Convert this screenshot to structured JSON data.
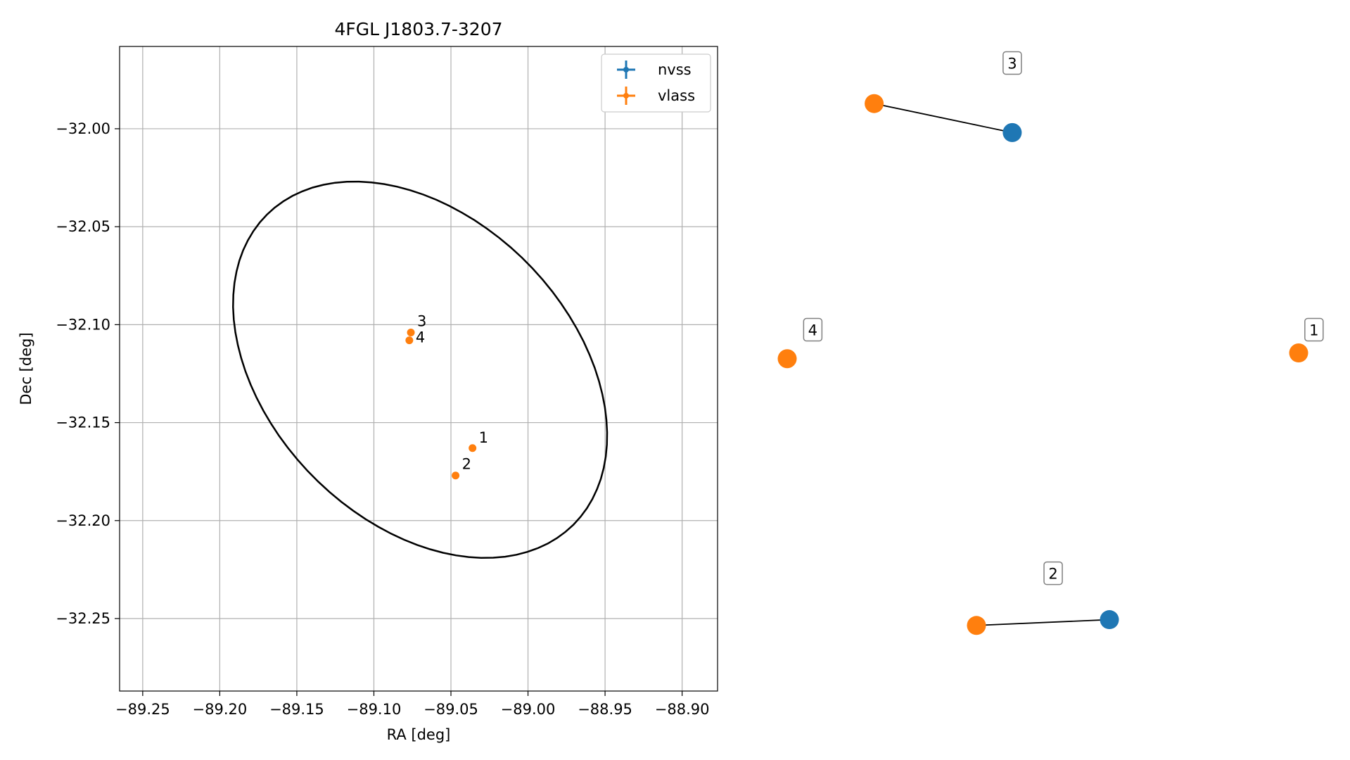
{
  "colors": {
    "nvss": "#1f77b4",
    "vlass": "#ff7f0e",
    "grid": "#b0b0b0",
    "ellipse": "#000000"
  },
  "chart_data": [
    {
      "type": "scatter",
      "title": "4FGL J1803.7-3207",
      "xlabel": "RA [deg]",
      "ylabel": "Dec [deg]",
      "xlim": [
        -89.265,
        -88.877
      ],
      "ylim": [
        -32.287,
        -31.958
      ],
      "xticks": [
        -89.25,
        -89.2,
        -89.15,
        -89.1,
        -89.05,
        -89.0,
        -88.95,
        -88.9
      ],
      "xtick_labels": [
        "−89.25",
        "−89.20",
        "−89.15",
        "−89.10",
        "−89.05",
        "−89.00",
        "−88.95",
        "−88.90"
      ],
      "yticks": [
        -32.0,
        -32.05,
        -32.1,
        -32.15,
        -32.2,
        -32.25
      ],
      "ytick_labels": [
        "−32.00",
        "−32.05",
        "−32.10",
        "−32.15",
        "−32.20",
        "−32.25"
      ],
      "grid": true,
      "legend_position": "top-right",
      "legend": [
        "nvss",
        "vlass"
      ],
      "series": [
        {
          "name": "nvss",
          "points": []
        },
        {
          "name": "vlass",
          "points": [
            {
              "label": "1",
              "ra": -89.036,
              "dec": -32.163
            },
            {
              "label": "2",
              "ra": -89.047,
              "dec": -32.177
            },
            {
              "label": "3",
              "ra": -89.076,
              "dec": -32.104
            },
            {
              "label": "4",
              "ra": -89.077,
              "dec": -32.108
            }
          ]
        }
      ],
      "ellipse": {
        "center": {
          "ra": -89.07,
          "dec": -32.123
        },
        "semi_axis_a_deg": 0.13,
        "semi_axis_b_deg": 0.084,
        "angle_deg": -28
      }
    },
    {
      "type": "network",
      "nodes": [
        {
          "id": "3-vlass",
          "series": "vlass",
          "u": 0.17,
          "v": 0.05
        },
        {
          "id": "3-nvss",
          "series": "nvss",
          "u": 0.44,
          "v": 0.1
        },
        {
          "id": "4-vlass",
          "series": "vlass",
          "u": 0.0,
          "v": 0.49
        },
        {
          "id": "1-vlass",
          "series": "vlass",
          "u": 1.0,
          "v": 0.48
        },
        {
          "id": "2-vlass",
          "series": "vlass",
          "u": 0.37,
          "v": 0.95
        },
        {
          "id": "2-nvss",
          "series": "nvss",
          "u": 0.63,
          "v": 0.94
        }
      ],
      "edges": [
        {
          "from": "3-vlass",
          "to": "3-nvss"
        },
        {
          "from": "2-vlass",
          "to": "2-nvss"
        }
      ],
      "labels": [
        {
          "text": "3",
          "u": 0.44,
          "v": -0.02
        },
        {
          "text": "4",
          "u": 0.05,
          "v": 0.44
        },
        {
          "text": "1",
          "u": 1.03,
          "v": 0.44
        },
        {
          "text": "2",
          "u": 0.52,
          "v": 0.86
        }
      ]
    }
  ]
}
